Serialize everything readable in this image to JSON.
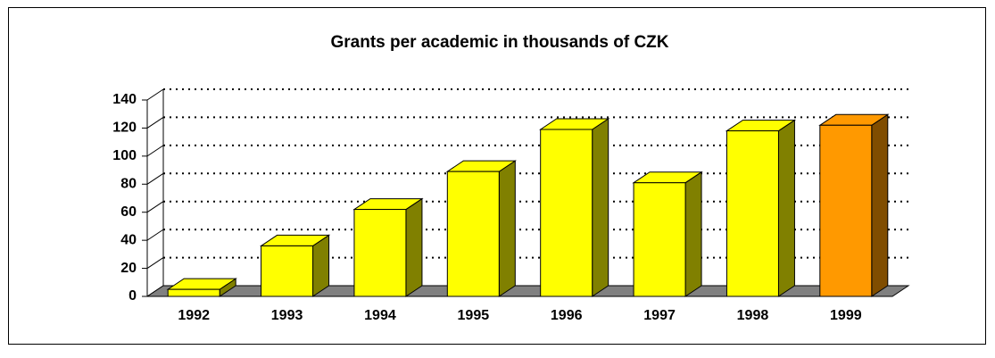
{
  "chart_data": {
    "type": "bar",
    "title": "Grants per academic in thousands of CZK",
    "categories": [
      "1992",
      "1993",
      "1994",
      "1995",
      "1996",
      "1997",
      "1998",
      "1999"
    ],
    "values": [
      5,
      36,
      62,
      89,
      119,
      81,
      118,
      122
    ],
    "colors": [
      "#ffff00",
      "#ffff00",
      "#ffff00",
      "#ffff00",
      "#ffff00",
      "#ffff00",
      "#ffff00",
      "#ff9900"
    ],
    "ylim": [
      0,
      140
    ],
    "yticks": [
      0,
      20,
      40,
      60,
      80,
      100,
      120,
      140
    ],
    "grid": true
  }
}
